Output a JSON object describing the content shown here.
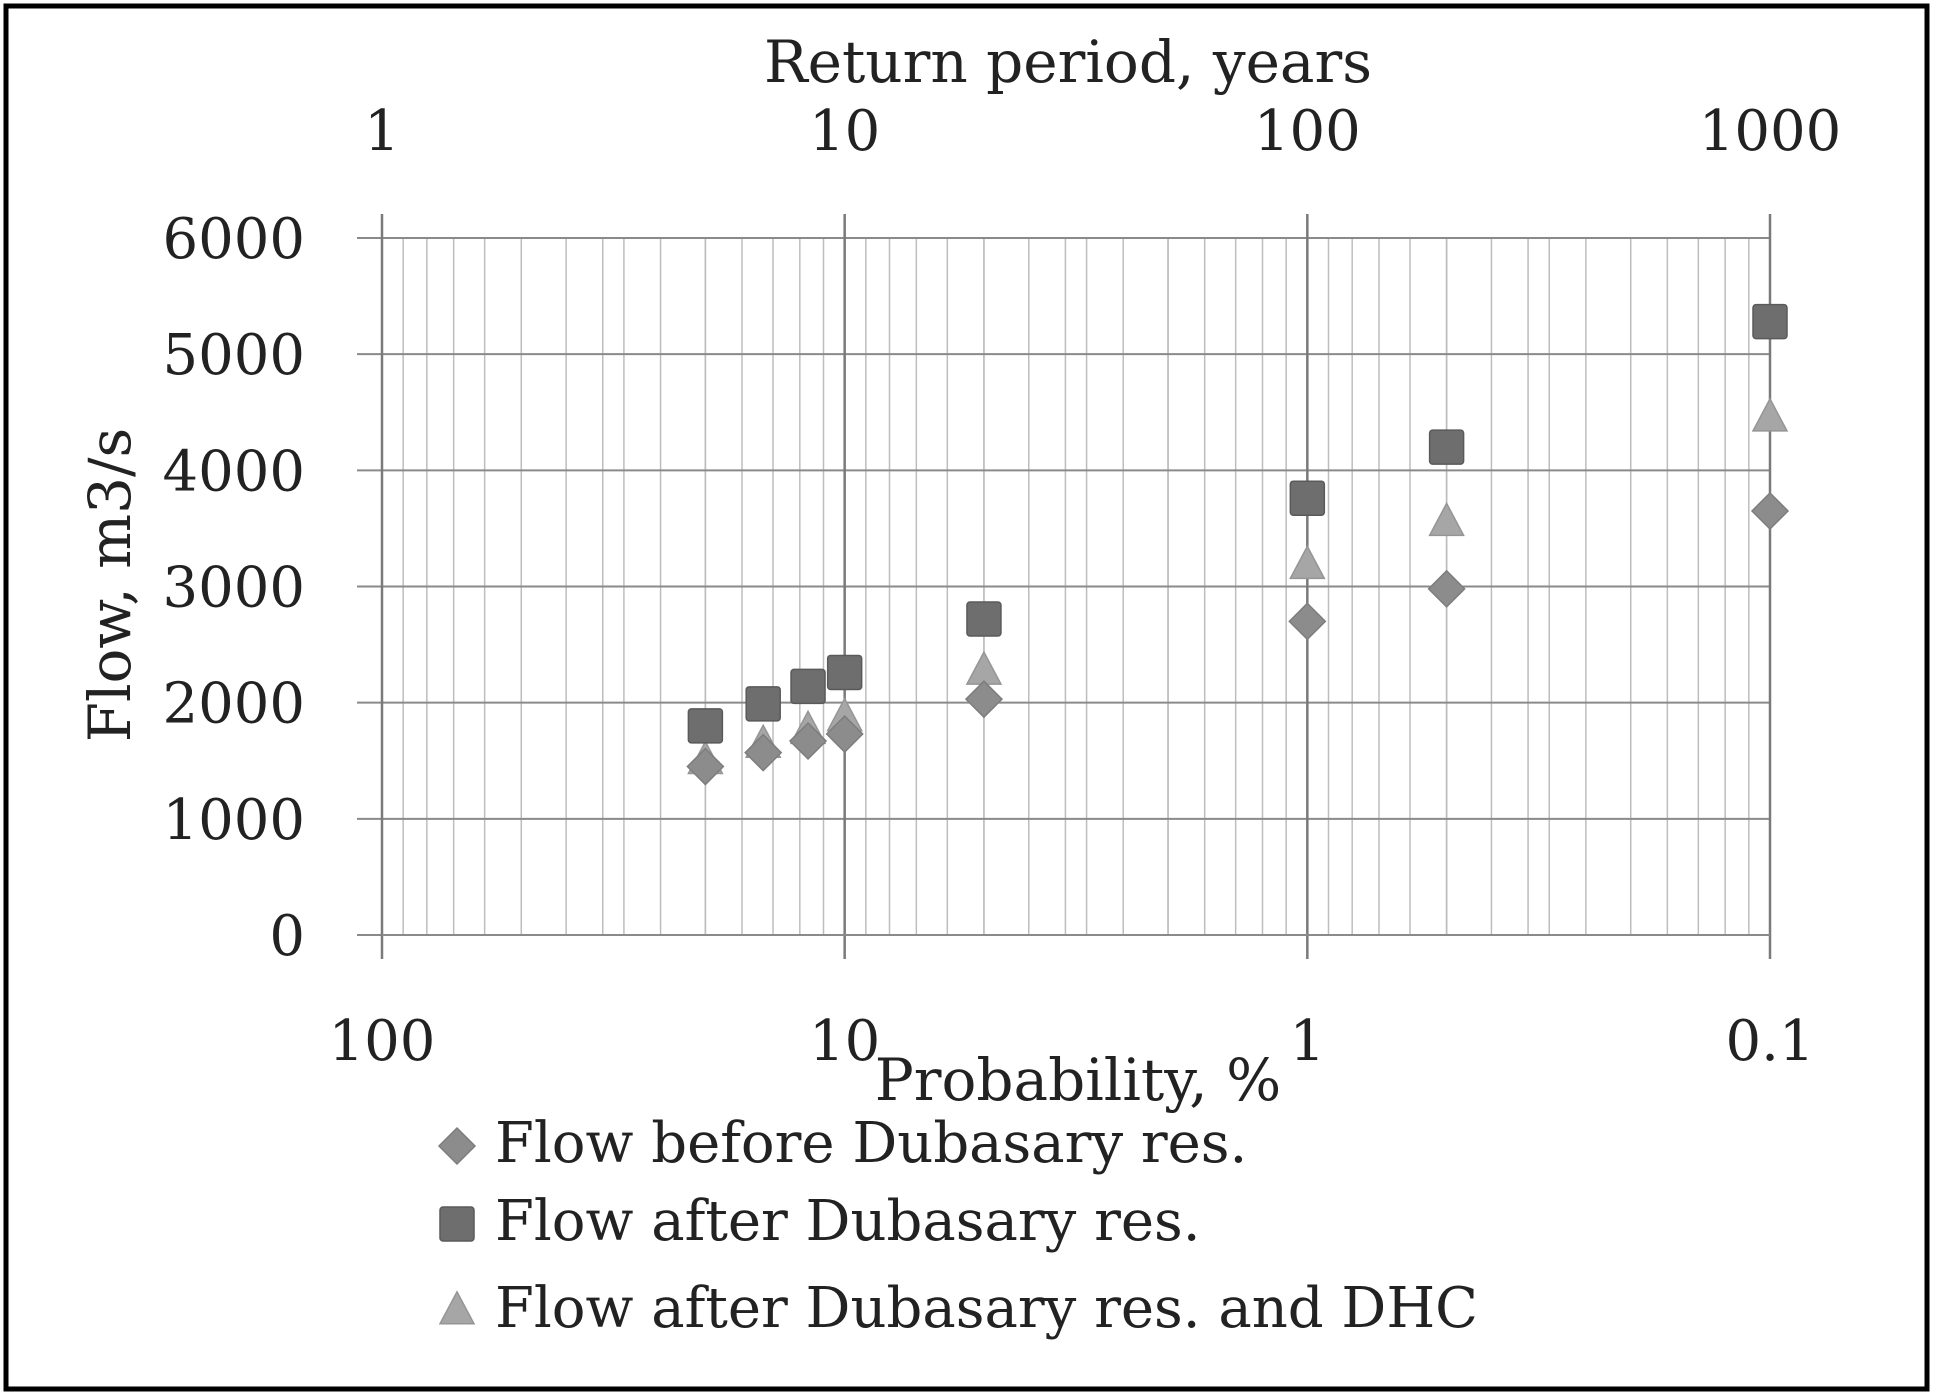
{
  "chart_data": {
    "type": "scatter",
    "title": "",
    "top_axis": {
      "label": "Return period, years",
      "scale": "log",
      "ticks": [
        1,
        10,
        100,
        1000
      ],
      "tick_labels": [
        "1",
        "10",
        "100",
        "1000"
      ]
    },
    "xlabel": "Probability, %",
    "x_scale": "log",
    "x_reversed": true,
    "xlim": [
      100,
      0.1
    ],
    "x_ticks": [
      100,
      10,
      1,
      0.1
    ],
    "x_tick_labels": [
      "100",
      "10",
      "1",
      "0.1"
    ],
    "ylabel": "Flow, m3/s",
    "ylim": [
      0,
      6000
    ],
    "y_ticks": [
      0,
      1000,
      2000,
      3000,
      4000,
      5000,
      6000
    ],
    "y_tick_labels": [
      "0",
      "1000",
      "2000",
      "3000",
      "4000",
      "5000",
      "6000"
    ],
    "grid": true,
    "legend_position": "bottom",
    "series": [
      {
        "name": "Flow before Dubasary res.",
        "marker": "diamond",
        "color": "#8c8c8c",
        "x": [
          20,
          15,
          12,
          10,
          5,
          1,
          0.5,
          0.1
        ],
        "y": [
          1450,
          1570,
          1670,
          1730,
          2030,
          2700,
          2980,
          3650
        ]
      },
      {
        "name": "Flow after Dubasary res.",
        "marker": "square",
        "color": "#6e6e6e",
        "x": [
          20,
          15,
          12,
          10,
          5,
          1,
          0.5,
          0.1
        ],
        "y": [
          1800,
          1990,
          2140,
          2260,
          2720,
          3760,
          4200,
          5280
        ]
      },
      {
        "name": "Flow after Dubasary res. and DHC",
        "marker": "triangle",
        "color": "#a6a6a6",
        "x": [
          20,
          15,
          12,
          10,
          5,
          1,
          0.5,
          0.1
        ],
        "y": [
          1500,
          1640,
          1760,
          1870,
          2270,
          3180,
          3550,
          4450
        ]
      }
    ]
  }
}
